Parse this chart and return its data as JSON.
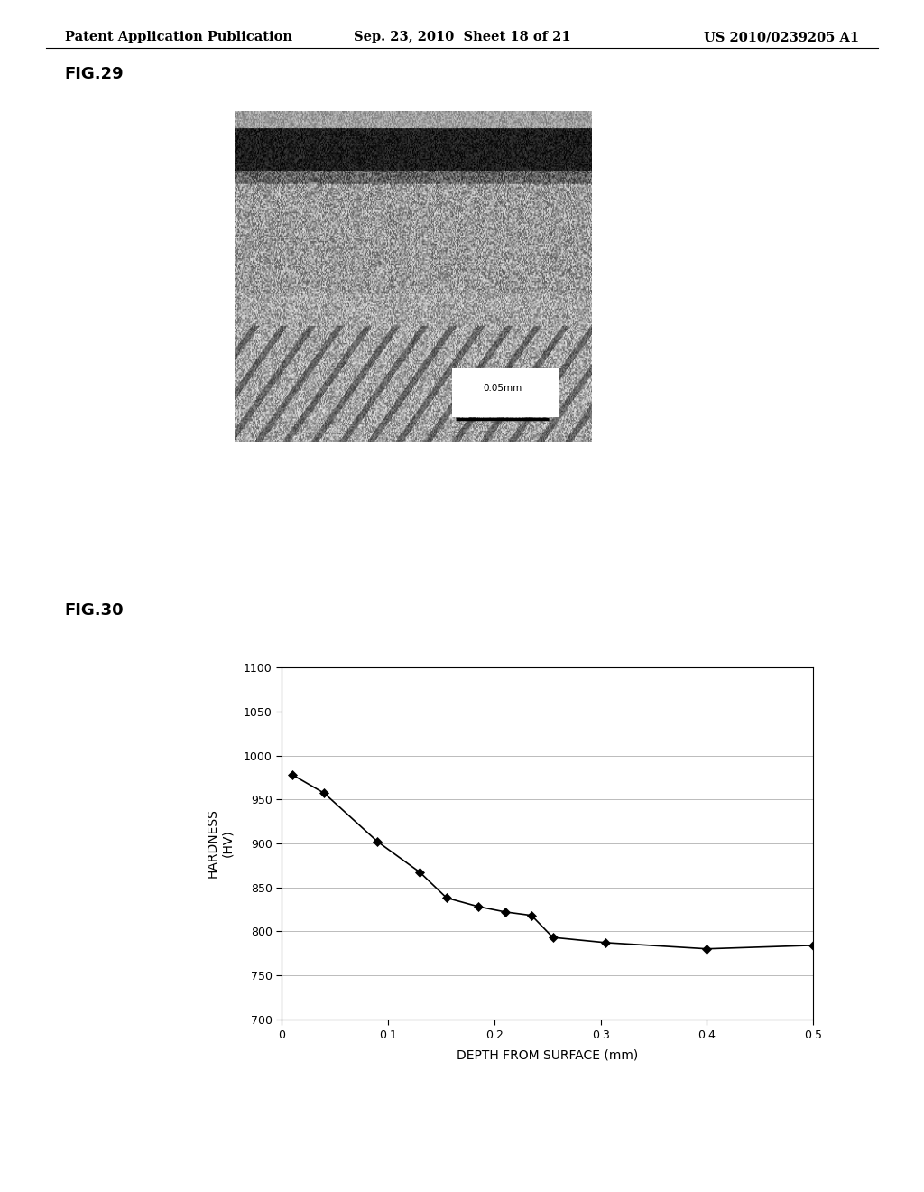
{
  "header_left": "Patent Application Publication",
  "header_center": "Sep. 23, 2010  Sheet 18 of 21",
  "header_right": "US 2010/0239205 A1",
  "fig29_label": "FIG.29",
  "fig30_label": "FIG.30",
  "scale_bar_text": "0.05mm",
  "chart_xlabel": "DEPTH FROM SURFACE (mm)",
  "chart_ylabel_line1": "HARDNESS",
  "chart_ylabel_line2": "(HV)",
  "x_data": [
    0.01,
    0.04,
    0.09,
    0.13,
    0.155,
    0.185,
    0.21,
    0.235,
    0.255,
    0.305,
    0.4,
    0.5
  ],
  "y_data": [
    978,
    957,
    902,
    867,
    838,
    828,
    822,
    818,
    793,
    787,
    780,
    784
  ],
  "xlim": [
    0,
    0.5
  ],
  "ylim": [
    700,
    1100
  ],
  "yticks": [
    700,
    750,
    800,
    850,
    900,
    950,
    1000,
    1050,
    1100
  ],
  "xticks": [
    0,
    0.1,
    0.2,
    0.3,
    0.4,
    0.5
  ],
  "background_color": "#ffffff",
  "line_color": "#000000",
  "marker_color": "#000000",
  "grid_color": "#bbbbbb",
  "header_font_size": 10.5,
  "fig_label_font_size": 13,
  "axis_label_font_size": 10,
  "tick_font_size": 9
}
